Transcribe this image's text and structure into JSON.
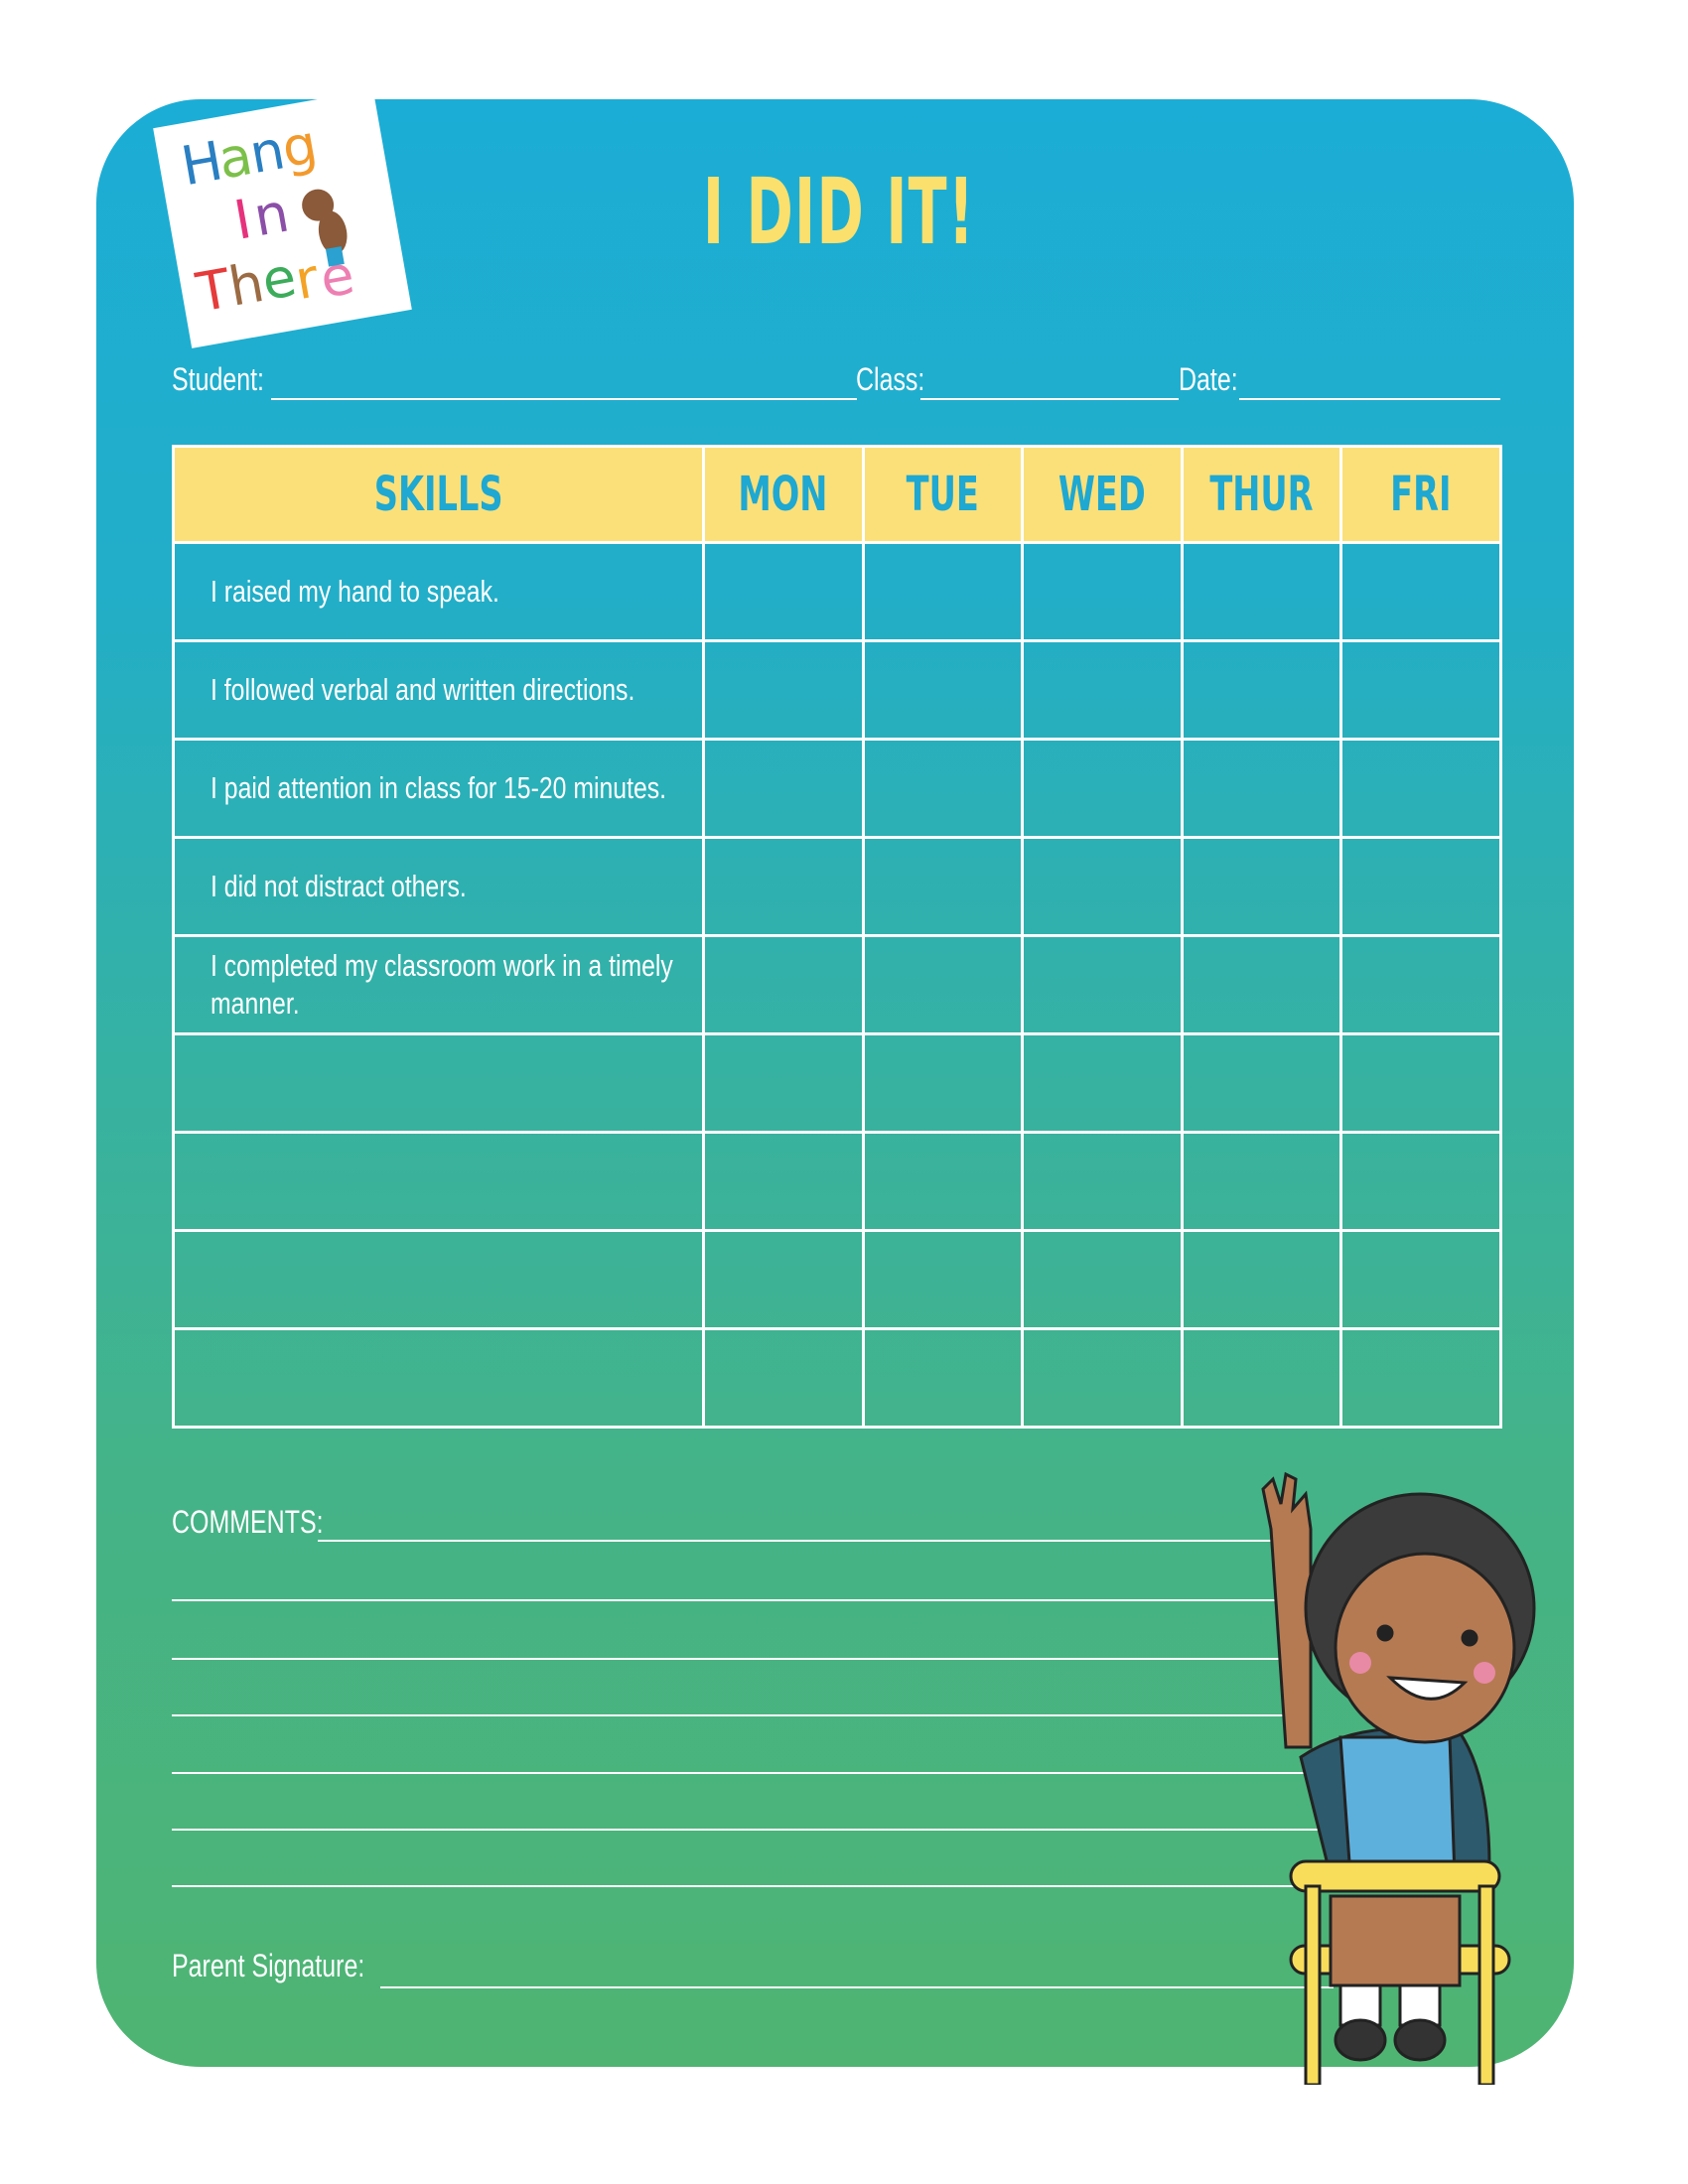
{
  "logo": {
    "lines": [
      "Hang",
      "In",
      "There"
    ]
  },
  "title": "I DID IT!",
  "fields": {
    "student": "Student:",
    "class": "Class:",
    "date": "Date:"
  },
  "table": {
    "headers": [
      "SKILLS",
      "MON",
      "TUE",
      "WED",
      "THUR",
      "FRI"
    ],
    "skills": [
      "I raised my hand to speak.",
      "I followed verbal and written directions.",
      "I paid attention in class for 15-20 minutes.",
      "I did not distract others.",
      "I completed my classroom work in a timely manner.",
      "",
      "",
      "",
      ""
    ]
  },
  "comments_label": "COMMENTS:",
  "parent_signature_label": "Parent Signature:",
  "colors": {
    "header_bg": "#fbe07a",
    "header_text": "#1ea8d2",
    "title": "#fbe06e",
    "gradient_top": "#1cadd6",
    "gradient_bottom": "#4fb472"
  }
}
